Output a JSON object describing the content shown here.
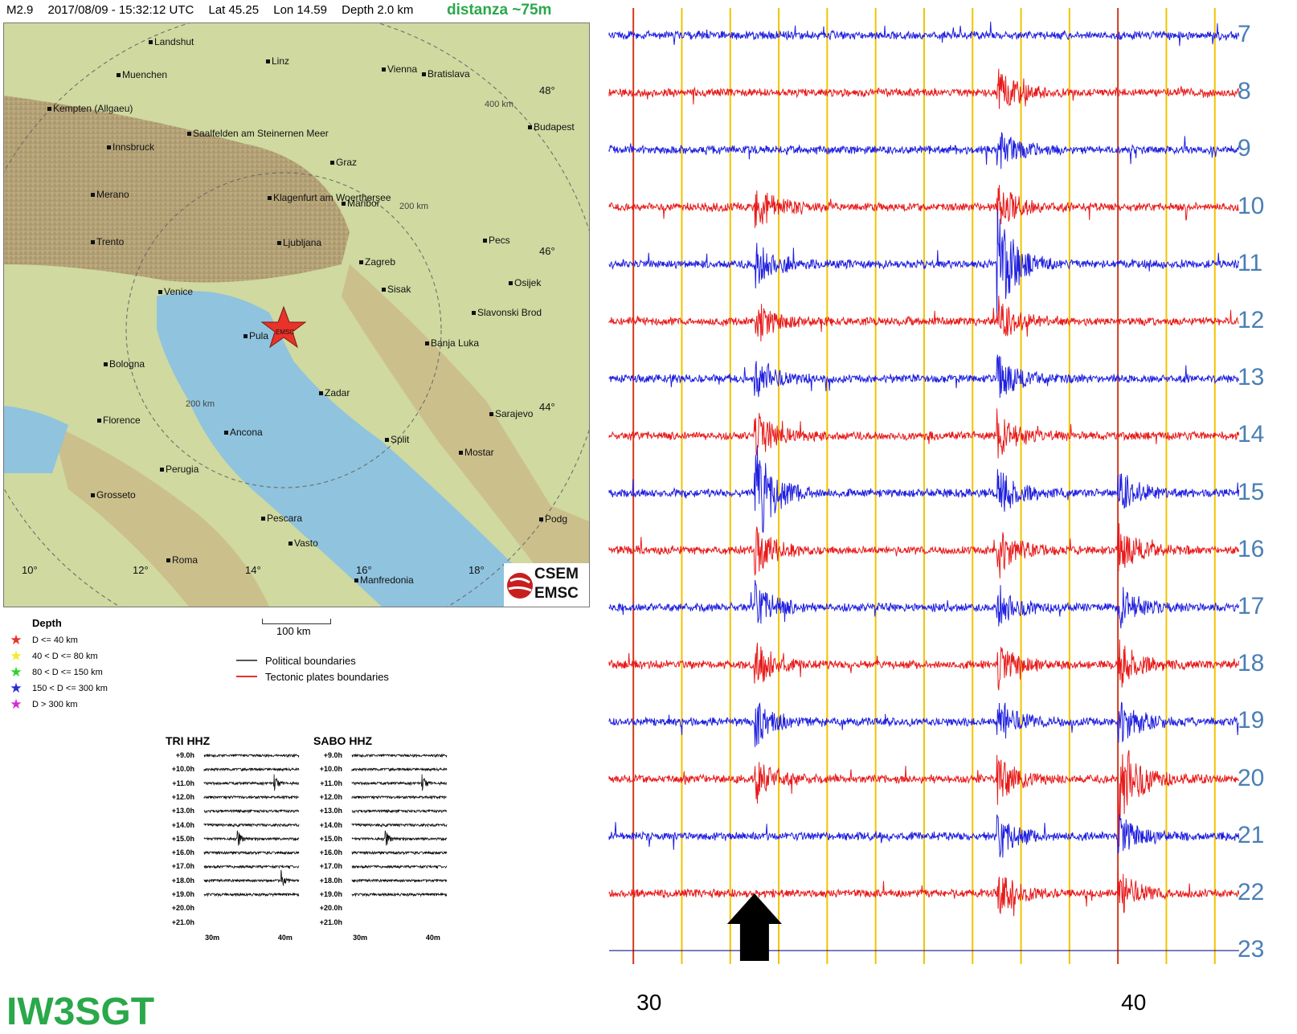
{
  "header": {
    "magnitude": "M2.9",
    "datetime": "2017/08/09 - 15:32:12 UTC",
    "lat": "Lat 45.25",
    "lon": "Lon 14.59",
    "depth": "Depth   2.0 km",
    "distance": "distanza ~75m"
  },
  "map": {
    "cities": [
      {
        "name": "Landshut"
      },
      {
        "name": "Linz"
      },
      {
        "name": "Muenchen"
      },
      {
        "name": "Vienna"
      },
      {
        "name": "Bratislava"
      },
      {
        "name": "Kempten (Allgaeu)"
      },
      {
        "name": "Budapest"
      },
      {
        "name": "Saalfelden am Steinernen Meer"
      },
      {
        "name": "Innsbruck"
      },
      {
        "name": "Graz"
      },
      {
        "name": "Merano"
      },
      {
        "name": "Klagenfurt am Woerthersee"
      },
      {
        "name": "Maribor"
      },
      {
        "name": "Trento"
      },
      {
        "name": "Ljubljana"
      },
      {
        "name": "Pecs"
      },
      {
        "name": "Zagreb"
      },
      {
        "name": "Venice"
      },
      {
        "name": "Sisak"
      },
      {
        "name": "Osijek"
      },
      {
        "name": "Slavonski Brod"
      },
      {
        "name": "Pula"
      },
      {
        "name": "Banja Luka"
      },
      {
        "name": "Bologna"
      },
      {
        "name": "Zadar"
      },
      {
        "name": "Florence"
      },
      {
        "name": "Sarajevo"
      },
      {
        "name": "Ancona"
      },
      {
        "name": "Split"
      },
      {
        "name": "Mostar"
      },
      {
        "name": "Perugia"
      },
      {
        "name": "Grosseto"
      },
      {
        "name": "Pescara"
      },
      {
        "name": "Podg"
      },
      {
        "name": "Vasto"
      },
      {
        "name": "Roma"
      },
      {
        "name": "Manfredonia"
      }
    ],
    "lat_labels": [
      "48°",
      "46°",
      "44°"
    ],
    "lon_labels": [
      "10°",
      "12°",
      "14°",
      "16°",
      "18°"
    ],
    "ring_labels": [
      "400 km",
      "200 km",
      "200 km"
    ],
    "epicenter_label": "EMSC",
    "logo": {
      "line1": "CSEM",
      "line2": "EMSC"
    },
    "scale_label": "100 km"
  },
  "depth_legend": {
    "title": "Depth",
    "items": [
      {
        "label": "D <= 40 km",
        "color": "#e8322a"
      },
      {
        "label": "40 < D <= 80 km",
        "color": "#f2ea2a"
      },
      {
        "label": "80 < D <= 150 km",
        "color": "#2ad62a"
      },
      {
        "label": "150 < D <= 300 km",
        "color": "#2a2ad6"
      },
      {
        "label": "D > 300 km",
        "color": "#d62ad6"
      }
    ]
  },
  "boundary_legend": [
    {
      "label": "Political boundaries",
      "color": "#555555"
    },
    {
      "label": "Tectonic plates boundaries",
      "color": "#e8322a"
    }
  ],
  "mini_tri": {
    "title": "TRI HHZ"
  },
  "mini_sabo": {
    "title": "SABO HHZ"
  },
  "mini_rows": [
    "+9.0h",
    "+10.0h",
    "+11.0h",
    "+12.0h",
    "+13.0h",
    "+14.0h",
    "+15.0h",
    "+16.0h",
    "+17.0h",
    "+18.0h",
    "+19.0h",
    "+20.0h",
    "+21.0h"
  ],
  "mini_xticks": [
    "30m",
    "40m"
  ],
  "callsign": "IW3SGT",
  "chart_data": [
    {
      "type": "line",
      "title": "",
      "description_of_axes": "helicorder drum; each trace = one hour, x = minutes",
      "x_ticks": [
        30,
        40
      ],
      "x_tick_labels": [
        "30",
        "40"
      ],
      "hour_labels": [
        "7",
        "8",
        "9",
        "10",
        "11",
        "12",
        "13",
        "14",
        "15",
        "16",
        "17",
        "18",
        "19",
        "20",
        "21",
        "22",
        "23"
      ],
      "colors": {
        "odd": "#1f1fe0",
        "even": "#e81a1a",
        "minute_lines": "#f0c400",
        "tick_lines": "#d23a1a",
        "baseline": "#1a1a8a"
      },
      "events": [
        {
          "start_minute": 37.5,
          "hours": [
            "8",
            "9",
            "10",
            "11",
            "12",
            "13",
            "14",
            "15",
            "16",
            "17",
            "18",
            "19",
            "20",
            "21",
            "22"
          ],
          "color": "blue",
          "peak_row": "11"
        },
        {
          "start_minute": 32.5,
          "hours": [
            "10",
            "11",
            "12",
            "13",
            "14",
            "15",
            "16",
            "17",
            "18",
            "19",
            "20"
          ],
          "color": "blue",
          "peak_row": "15"
        },
        {
          "start_minute": 40.0,
          "hours": [
            "15",
            "16",
            "17",
            "18",
            "19",
            "20",
            "21",
            "22",
            "23"
          ],
          "color": "red",
          "peak_row": "20"
        }
      ],
      "arrow_minute": 32.5
    },
    {
      "type": "line",
      "title": "TRI HHZ",
      "rows": [
        "+9.0h",
        "+10.0h",
        "+11.0h",
        "+12.0h",
        "+13.0h",
        "+14.0h",
        "+15.0h",
        "+16.0h",
        "+17.0h",
        "+18.0h",
        "+19.0h",
        "+20.0h",
        "+21.0h"
      ],
      "x_tick_labels": [
        "30m",
        "40m"
      ],
      "events": [
        {
          "minute": 38.5,
          "row": "+11.0h"
        },
        {
          "minute": 33.5,
          "row": "+15.0h"
        },
        {
          "minute": 39.5,
          "row": "+18.0h"
        }
      ]
    },
    {
      "type": "line",
      "title": "SABO HHZ",
      "rows": [
        "+9.0h",
        "+10.0h",
        "+11.0h",
        "+12.0h",
        "+13.0h",
        "+14.0h",
        "+15.0h",
        "+16.0h",
        "+17.0h",
        "+18.0h",
        "+19.0h",
        "+20.0h",
        "+21.0h"
      ],
      "x_tick_labels": [
        "30m",
        "40m"
      ],
      "events": [
        {
          "minute": 38.5,
          "row": "+11.0h"
        },
        {
          "minute": 33.5,
          "row": "+15.0h"
        }
      ]
    }
  ]
}
